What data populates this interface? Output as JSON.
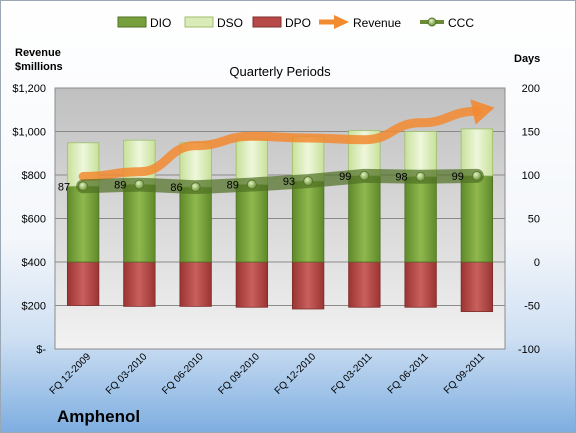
{
  "chart_data": {
    "type": "bar",
    "title": "Quarterly Periods",
    "company": "Amphenol",
    "left_axis": {
      "title_lines": [
        "Revenue",
        "$millions"
      ],
      "range": [
        0,
        1200
      ],
      "ticks": [
        0,
        200,
        400,
        600,
        800,
        1000,
        1200
      ],
      "tick_labels": [
        "$-",
        "$200",
        "$400",
        "$600",
        "$800",
        "$1,000",
        "$1,200"
      ]
    },
    "right_axis": {
      "title": "Days",
      "range": [
        -100,
        200
      ],
      "ticks": [
        -100,
        -50,
        0,
        50,
        100,
        150,
        200
      ],
      "tick_labels": [
        "-100",
        "-50",
        "0",
        "50",
        "100",
        "150",
        "200"
      ]
    },
    "categories": [
      "FQ 12-2009",
      "FQ 03-2010",
      "FQ 06-2010",
      "FQ 09-2010",
      "FQ 12-2010",
      "FQ 03-2011",
      "FQ 06-2011",
      "FQ 09-2011"
    ],
    "series": [
      {
        "name": "DIO",
        "axis": "right",
        "color": "#77a03c",
        "values": [
          87,
          89,
          86,
          89,
          93,
          99,
          98,
          99
        ]
      },
      {
        "name": "DSO",
        "axis": "right",
        "color": "#d9ecb8",
        "values": [
          50,
          51,
          51,
          52,
          51,
          52,
          52,
          54
        ]
      },
      {
        "name": "DPO",
        "axis": "right",
        "color": "#b74a48",
        "values": [
          -50,
          -51,
          -51,
          -52,
          -54,
          -52,
          -52,
          -57
        ]
      },
      {
        "name": "Revenue",
        "axis": "left",
        "color": "#f28a30",
        "values": [
          793,
          815,
          935,
          978,
          970,
          962,
          1040,
          1093
        ]
      },
      {
        "name": "CCC",
        "axis": "right",
        "color": "#6a8a3a",
        "values": [
          87,
          89,
          86,
          89,
          93,
          99,
          98,
          99
        ]
      }
    ],
    "ccc_labels": [
      "87",
      "89",
      "86",
      "89",
      "93",
      "99",
      "98",
      "99"
    ],
    "legend_position": "top",
    "grid": true
  }
}
